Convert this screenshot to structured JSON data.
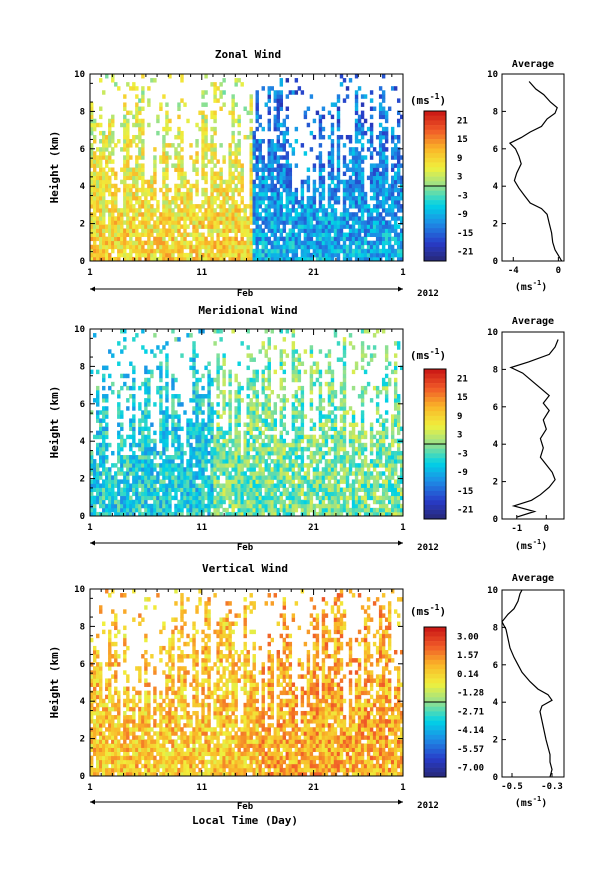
{
  "chart_data": [
    {
      "type": "heatmap",
      "title": "Zonal Wind",
      "ylabel": "Height (km)",
      "ylim": [
        0,
        10
      ],
      "y_ticks": [
        "0",
        "2",
        "4",
        "6",
        "8",
        "10"
      ],
      "x_ticks": [
        "1",
        "11",
        "21",
        "1"
      ],
      "xlim_day": [
        1,
        29
      ],
      "month_label": "Feb",
      "year_label": "2012",
      "colorbar": {
        "unit_main": "(ms",
        "unit_sup": "-1",
        "unit_end": ")",
        "min": -24,
        "max": 24,
        "ticks": [
          "21",
          "15",
          "9",
          "3",
          "-3",
          "-9",
          "-15",
          "-21"
        ]
      },
      "pattern": {
        "regime_change_day": 15.5,
        "early_mean": 6,
        "late_mean": -12
      },
      "average": {
        "title": "Average",
        "xlabel_main": "(ms",
        "xlabel_sup": "-1",
        "xlabel_end": ")",
        "xlim": [
          -5,
          0.5
        ],
        "x_ticks": [
          {
            "v": -4,
            "label": "-4"
          },
          {
            "v": 0,
            "label": "0"
          }
        ],
        "ylim": [
          0,
          10
        ],
        "y_ticks": [
          "0",
          "2",
          "4",
          "6",
          "8",
          "10"
        ],
        "profile": [
          [
            0.3,
            0.0
          ],
          [
            0.0,
            0.3
          ],
          [
            -0.3,
            0.6
          ],
          [
            -0.5,
            1.0
          ],
          [
            -0.6,
            1.5
          ],
          [
            -0.8,
            2.0
          ],
          [
            -1.0,
            2.5
          ],
          [
            -1.5,
            2.8
          ],
          [
            -2.5,
            3.1
          ],
          [
            -3.0,
            3.5
          ],
          [
            -3.5,
            3.9
          ],
          [
            -3.9,
            4.3
          ],
          [
            -3.7,
            4.7
          ],
          [
            -3.3,
            5.2
          ],
          [
            -3.5,
            5.6
          ],
          [
            -3.8,
            6.0
          ],
          [
            -4.3,
            6.3
          ],
          [
            -3.3,
            6.6
          ],
          [
            -2.5,
            6.9
          ],
          [
            -1.5,
            7.2
          ],
          [
            -1.0,
            7.6
          ],
          [
            -0.3,
            7.9
          ],
          [
            -0.1,
            8.2
          ],
          [
            -0.7,
            8.5
          ],
          [
            -1.3,
            8.9
          ],
          [
            -2.0,
            9.2
          ],
          [
            -2.6,
            9.6
          ]
        ]
      }
    },
    {
      "type": "heatmap",
      "title": "Meridional Wind",
      "ylabel": "Height (km)",
      "ylim": [
        0,
        10
      ],
      "y_ticks": [
        "0",
        "2",
        "4",
        "6",
        "8",
        "10"
      ],
      "x_ticks": [
        "1",
        "11",
        "21",
        "1"
      ],
      "xlim_day": [
        1,
        29
      ],
      "month_label": "Feb",
      "year_label": "2012",
      "colorbar": {
        "unit_main": "(ms",
        "unit_sup": "-1",
        "unit_end": ")",
        "min": -24,
        "max": 24,
        "ticks": [
          "21",
          "15",
          "9",
          "3",
          "-3",
          "-9",
          "-15",
          "-21"
        ]
      },
      "pattern": {
        "regime_change_day": 12,
        "early_mean": -6,
        "late_mean": -1
      },
      "average": {
        "title": "Average",
        "xlabel_main": "(ms",
        "xlabel_sup": "-1",
        "xlabel_end": ")",
        "xlim": [
          -1.5,
          0.6
        ],
        "x_ticks": [
          {
            "v": -1,
            "label": "-1"
          },
          {
            "v": 0,
            "label": "0"
          }
        ],
        "ylim": [
          0,
          10
        ],
        "y_ticks": [
          "0",
          "2",
          "4",
          "6",
          "8",
          "10"
        ],
        "profile": [
          [
            -1.0,
            0.1
          ],
          [
            -0.4,
            0.4
          ],
          [
            -1.1,
            0.7
          ],
          [
            -0.5,
            1.0
          ],
          [
            -0.2,
            1.3
          ],
          [
            0.1,
            1.7
          ],
          [
            0.3,
            2.1
          ],
          [
            0.2,
            2.5
          ],
          [
            0.0,
            2.9
          ],
          [
            -0.2,
            3.3
          ],
          [
            -0.1,
            3.8
          ],
          [
            -0.2,
            4.3
          ],
          [
            0.0,
            4.8
          ],
          [
            -0.1,
            5.3
          ],
          [
            0.1,
            5.8
          ],
          [
            -0.1,
            6.2
          ],
          [
            0.1,
            6.6
          ],
          [
            -0.2,
            7.0
          ],
          [
            -0.5,
            7.4
          ],
          [
            -0.8,
            7.8
          ],
          [
            -1.2,
            8.1
          ],
          [
            -0.6,
            8.4
          ],
          [
            0.1,
            8.8
          ],
          [
            0.3,
            9.2
          ],
          [
            0.4,
            9.6
          ]
        ]
      }
    },
    {
      "type": "heatmap",
      "title": "Vertical Wind",
      "ylabel": "Height (km)",
      "ylim": [
        0,
        10
      ],
      "y_ticks": [
        "0",
        "2",
        "4",
        "6",
        "8",
        "10"
      ],
      "x_ticks": [
        "1",
        "11",
        "21",
        "1"
      ],
      "xlim_day": [
        1,
        29
      ],
      "month_label": "Feb",
      "year_label": "2012",
      "xlabel": "Local Time (Day)",
      "colorbar": {
        "unit_main": "(ms",
        "unit_sup": "-1",
        "unit_end": ")",
        "min": -7.7,
        "max": 3.7,
        "ticks": [
          "3.00",
          "1.57",
          "0.14",
          "-1.28",
          "-2.71",
          "-4.14",
          "-5.57",
          "-7.00"
        ]
      },
      "pattern": {
        "regime_change_day": 16,
        "early_mean": 0.4,
        "late_mean": 0.9
      },
      "average": {
        "title": "Average",
        "xlabel_main": "(ms",
        "xlabel_sup": "-1",
        "xlabel_end": ")",
        "xlim": [
          -0.55,
          -0.24
        ],
        "x_ticks": [
          {
            "v": -0.5,
            "label": "-0.5"
          },
          {
            "v": -0.3,
            "label": "-0.3"
          }
        ],
        "ylim": [
          0,
          10
        ],
        "y_ticks": [
          "0",
          "2",
          "4",
          "6",
          "8",
          "10"
        ],
        "profile": [
          [
            -0.31,
            0.0
          ],
          [
            -0.3,
            0.4
          ],
          [
            -0.31,
            0.8
          ],
          [
            -0.31,
            1.2
          ],
          [
            -0.32,
            1.6
          ],
          [
            -0.33,
            2.0
          ],
          [
            -0.34,
            2.5
          ],
          [
            -0.35,
            3.0
          ],
          [
            -0.36,
            3.5
          ],
          [
            -0.35,
            3.8
          ],
          [
            -0.3,
            4.1
          ],
          [
            -0.32,
            4.4
          ],
          [
            -0.37,
            4.7
          ],
          [
            -0.41,
            5.1
          ],
          [
            -0.45,
            5.6
          ],
          [
            -0.47,
            6.0
          ],
          [
            -0.49,
            6.4
          ],
          [
            -0.51,
            6.9
          ],
          [
            -0.52,
            7.4
          ],
          [
            -0.53,
            7.9
          ],
          [
            -0.55,
            8.3
          ],
          [
            -0.52,
            8.7
          ],
          [
            -0.49,
            9.0
          ],
          [
            -0.47,
            9.4
          ],
          [
            -0.46,
            9.8
          ],
          [
            -0.45,
            10.0
          ]
        ]
      }
    }
  ]
}
